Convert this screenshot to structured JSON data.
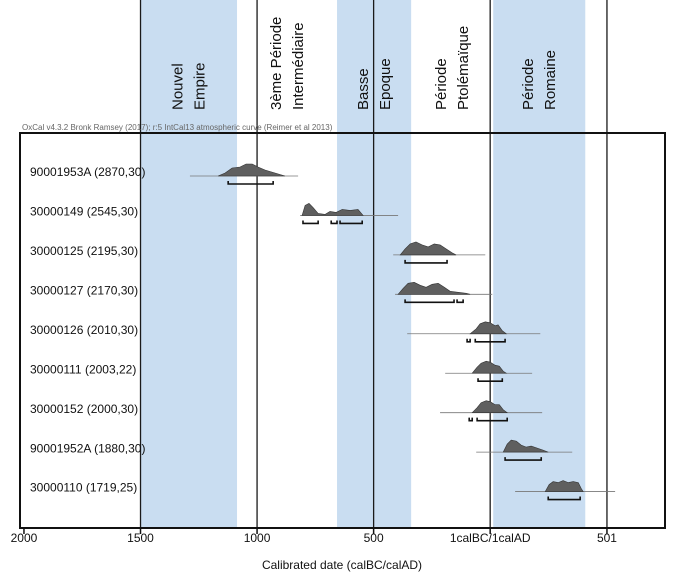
{
  "chart_data": {
    "type": "oxcal",
    "note": "OxCal v4.3.2 Bronk Ramsey (2017); r:5 IntCal13 atmospheric curve (Reimer et al 2013)",
    "xlabel": "Calibrated date (calBC/calAD)",
    "xlim": [
      -2017,
      750
    ],
    "xticks": [
      {
        "value": -2000,
        "label": "2000"
      },
      {
        "value": -1500,
        "label": "1500"
      },
      {
        "value": -1000,
        "label": "1000"
      },
      {
        "value": -500,
        "label": "500"
      },
      {
        "value": 0,
        "label": "1calBC/1calAD"
      },
      {
        "value": 501,
        "label": "501"
      }
    ],
    "band_color": "#c9ddf1",
    "period_text_color": "#2f6db8",
    "density_color": "#5f5f5f",
    "periods": [
      {
        "lines": [
          "Nouvel",
          "Empire"
        ],
        "start": -1500,
        "end": -1086,
        "band": true
      },
      {
        "lines": [
          "3ème Période",
          "Intermédiaire"
        ],
        "start": -1086,
        "end": -657,
        "band": false
      },
      {
        "lines": [
          "Basse",
          "Epoque"
        ],
        "start": -657,
        "end": -339,
        "band": true
      },
      {
        "lines": [
          "Période",
          "Ptolémaïque"
        ],
        "start": -339,
        "end": 13,
        "band": false
      },
      {
        "lines": [
          "Période",
          "Romaine"
        ],
        "start": 13,
        "end": 408,
        "band": true
      }
    ],
    "samples": [
      {
        "name": "90001953A (2870,30)",
        "range": [
          -1288,
          -824
        ],
        "density_x": [
          -1167,
          -1137,
          -1107,
          -1073,
          -1047,
          -1021,
          -996,
          -966,
          -923,
          -880
        ],
        "density": [
          0,
          3,
          8,
          9,
          12,
          12,
          9,
          6,
          3,
          0
        ],
        "intervals": [
          [
            -1124,
            -931
          ]
        ]
      },
      {
        "name": "30000149 (2545,30)",
        "range": [
          -815,
          -395
        ],
        "density_x": [
          -807,
          -794,
          -777,
          -760,
          -738,
          -708,
          -687,
          -661,
          -635,
          -601,
          -567,
          -545
        ],
        "density": [
          0,
          10,
          12,
          8,
          2,
          1,
          4,
          3,
          6,
          5,
          6,
          0
        ],
        "intervals": [
          [
            -803,
            -738
          ],
          [
            -682,
            -657
          ],
          [
            -644,
            -549
          ]
        ]
      },
      {
        "name": "30000125 (2195,30)",
        "range": [
          -416,
          -21
        ],
        "density_x": [
          -386,
          -365,
          -343,
          -318,
          -292,
          -266,
          -240,
          -215,
          -189,
          -163,
          -146
        ],
        "density": [
          0,
          6,
          11,
          13,
          10,
          8,
          11,
          10,
          6,
          2,
          0
        ],
        "intervals": [
          [
            -365,
            -185
          ]
        ]
      },
      {
        "name": "30000127 (2170,30)",
        "range": [
          -408,
          9
        ],
        "density_x": [
          -395,
          -373,
          -352,
          -326,
          -300,
          -275,
          -249,
          -223,
          -197,
          -172,
          -137,
          -103,
          -86
        ],
        "density": [
          0,
          6,
          11,
          12,
          9,
          7,
          10,
          11,
          7,
          3,
          2,
          1,
          0
        ],
        "intervals": [
          [
            -365,
            -155
          ],
          [
            -142,
            -116
          ]
        ]
      },
      {
        "name": "30000126 (2010,30)",
        "range": [
          -356,
          215
        ],
        "density_x": [
          -86,
          -60,
          -43,
          -21,
          0,
          21,
          34,
          52,
          69
        ],
        "density": [
          0,
          5,
          10,
          12,
          11,
          8,
          9,
          3,
          0
        ],
        "intervals": [
          [
            -99,
            -86
          ],
          [
            -64,
            64
          ]
        ]
      },
      {
        "name": "30000111 (2003,22)",
        "range": [
          -193,
          180
        ],
        "density_x": [
          -77,
          -56,
          -39,
          -17,
          0,
          21,
          39,
          56,
          69
        ],
        "density": [
          0,
          6,
          10,
          12,
          11,
          8,
          7,
          2,
          0
        ],
        "intervals": [
          [
            -52,
            52
          ]
        ]
      },
      {
        "name": "30000152 (2000,30)",
        "range": [
          -215,
          223
        ],
        "density_x": [
          -77,
          -56,
          -39,
          -17,
          0,
          21,
          39,
          56,
          73
        ],
        "density": [
          0,
          5,
          10,
          12,
          11,
          8,
          8,
          3,
          0
        ],
        "intervals": [
          [
            -90,
            -77
          ],
          [
            -56,
            73
          ]
        ]
      },
      {
        "name": "90001952A (1880,30)",
        "range": [
          -60,
          352
        ],
        "density_x": [
          56,
          73,
          90,
          112,
          133,
          155,
          176,
          202,
          227,
          249
        ],
        "density": [
          0,
          8,
          12,
          11,
          7,
          5,
          6,
          4,
          2,
          0
        ],
        "intervals": [
          [
            64,
            219
          ]
        ]
      },
      {
        "name": "30000110 (1719,25)",
        "range": [
          107,
          536
        ],
        "density_x": [
          236,
          253,
          270,
          292,
          313,
          335,
          356,
          378,
          391,
          399
        ],
        "density": [
          0,
          7,
          10,
          9,
          11,
          9,
          10,
          9,
          3,
          0
        ],
        "intervals": [
          [
            249,
            386
          ]
        ]
      }
    ]
  }
}
